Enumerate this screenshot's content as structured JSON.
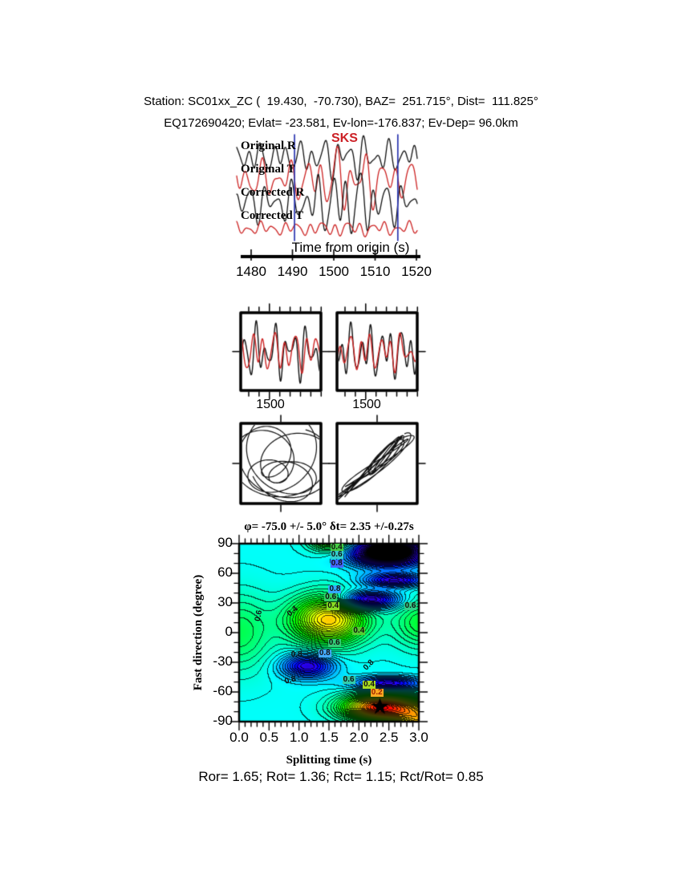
{
  "header": {
    "line1": "Station: SC01xx_ZC (  19.430,  -70.730), BAZ=  251.715°, Dist=  111.825°",
    "line2": "EQ172690420; Evlat= -23.581, Ev-lon=-176.837; Ev-Dep= 96.0km"
  },
  "waveform_panel": {
    "phase_label": "SKS",
    "trace_labels": [
      "Original R",
      "Original T",
      "Corrected R",
      "Corrected T"
    ],
    "axis_title": "Time from origin (s)",
    "tick_labels": [
      "1480",
      "1490",
      "1500",
      "1510",
      "1520"
    ]
  },
  "window_panels": {
    "tick_label": "1500"
  },
  "contour_panel": {
    "title": "φ= -75.0 +/- 5.0° δt= 2.35 +/-0.27s",
    "ylabel": "Fast direction (degree)",
    "xlabel": "Splitting time (s)",
    "ytick_labels": [
      "90",
      "60",
      "30",
      "0",
      "-30",
      "-60",
      "-90"
    ],
    "xtick_labels": [
      "0.0",
      "0.5",
      "1.0",
      "1.5",
      "2.0",
      "2.5",
      "3.0"
    ]
  },
  "footer": "Ror= 1.65; Rot= 1.36; Rct= 1.15; Rct/Rot= 0.85",
  "colors": {
    "trace_black": "#111111",
    "trace_red": "#cc2222",
    "window_marker_blue": "#2b35b0",
    "phase_red": "#cc2026"
  },
  "chart_data": {
    "waveforms": {
      "type": "line",
      "note": "seismic traces; components = [period_s, amplitude_px, phase_rad]; shapes are visual approximations of the screenshot",
      "x_range_s": [
        1476.5,
        1521.5
      ],
      "xticks": [
        1480,
        1490,
        1500,
        1510,
        1520
      ],
      "window_markers_s": [
        1490.5,
        1515.5
      ],
      "traces": [
        {
          "name": "Original R",
          "color": "#111111",
          "components": [
            [
              3.1,
              11,
              0.3
            ],
            [
              5.2,
              7,
              1.8
            ],
            [
              2.1,
              4,
              4.0
            ]
          ],
          "env_gain": 0.5
        },
        {
          "name": "Original T",
          "color": "#cc2222",
          "components": [
            [
              3.6,
              14,
              2.6
            ],
            [
              6.0,
              9,
              0.8
            ],
            [
              2.3,
              5,
              3.3
            ]
          ],
          "env_gain": 0.8
        },
        {
          "name": "Corrected R",
          "color": "#111111",
          "components": [
            [
              3.3,
              15,
              5.0
            ],
            [
              5.5,
              9,
              2.2
            ],
            [
              2.2,
              5,
              1.1
            ]
          ],
          "env_gain": 0.9
        },
        {
          "name": "Corrected T",
          "color": "#cc2222",
          "components": [
            [
              3.0,
              5,
              1.0
            ],
            [
              7.0,
              3,
              2.5
            ],
            [
              2.0,
              2,
              0.5
            ]
          ],
          "env_gain": 0.2
        }
      ]
    },
    "window_zoom": {
      "type": "line",
      "x_range_s": [
        1490,
        1516
      ],
      "tick_s": 1500,
      "boxes": [
        {
          "name": "original R+T",
          "series": [
            {
              "color": "#111111",
              "components": [
                [
                  3.2,
                  20,
                  0.6
                ],
                [
                  5.4,
                  14,
                  2.0
                ],
                [
                  2.2,
                  7,
                  4.2
                ]
              ]
            },
            {
              "color": "#cc2222",
              "components": [
                [
                  3.5,
                  16,
                  2.8
                ],
                [
                  6.1,
                  10,
                  0.9
                ],
                [
                  2.4,
                  6,
                  3.4
                ]
              ]
            }
          ]
        },
        {
          "name": "corrected R+T",
          "series": [
            {
              "color": "#111111",
              "components": [
                [
                  3.2,
                  20,
                  1.1
                ],
                [
                  5.6,
                  13,
                  2.4
                ],
                [
                  2.2,
                  7,
                  0.4
                ]
              ]
            },
            {
              "color": "#cc2222",
              "components": [
                [
                  3.2,
                  14,
                  1.4
                ],
                [
                  5.6,
                  10,
                  2.7
                ],
                [
                  2.4,
                  5,
                  0.7
                ]
              ]
            }
          ]
        }
      ]
    },
    "particle_motion": {
      "type": "parametric",
      "boxes": [
        {
          "name": "original (elliptical)",
          "x_components": [
            [
              3.4,
              30,
              0.0
            ],
            [
              5.7,
              18,
              1.2
            ],
            [
              9.0,
              12,
              2.1
            ]
          ],
          "y_components": [
            [
              3.4,
              26,
              1.55
            ],
            [
              5.7,
              20,
              2.9
            ],
            [
              9.0,
              10,
              0.6
            ]
          ]
        },
        {
          "name": "corrected (linearized)",
          "x_components": [
            [
              3.3,
              28,
              0.5
            ],
            [
              5.5,
              16,
              1.9
            ],
            [
              8.5,
              10,
              3.0
            ]
          ],
          "y_components": [
            [
              3.3,
              25,
              0.65
            ],
            [
              5.5,
              14,
              2.05
            ],
            [
              8.5,
              9,
              3.15
            ],
            [
              2.3,
              6,
              2.2
            ]
          ]
        }
      ]
    },
    "error_surface": {
      "type": "contour",
      "x_label": "Splitting time (s)",
      "x_range": [
        0,
        3
      ],
      "y_label": "Fast direction (degree)",
      "y_range": [
        -90,
        90
      ],
      "best_fit": {
        "phi_deg": -75.0,
        "phi_err_deg": 5.0,
        "dt_s": 2.35,
        "dt_err_s": 0.27
      },
      "star": {
        "x": 2.35,
        "y": -75
      },
      "base_level": 0.78,
      "contour_interval": 0.025,
      "gaussians": [
        {
          "a": -0.66,
          "x": 2.35,
          "sx": 0.6,
          "y": -76,
          "sy": 13
        },
        {
          "a": -0.5,
          "x": 1.5,
          "sx": 0.62,
          "y": 13,
          "sy": 24
        },
        {
          "a": 0.3,
          "x": 1.15,
          "sx": 0.42,
          "y": -34,
          "sy": 12
        },
        {
          "a": 0.6,
          "x": 2.5,
          "sx": 0.62,
          "y": 82,
          "sy": 14
        },
        {
          "a": 0.3,
          "x": 2.6,
          "sx": 0.5,
          "y": 53,
          "sy": 7
        },
        {
          "a": 0.38,
          "x": 2.15,
          "sx": 0.5,
          "y": 33,
          "sy": 9
        },
        {
          "a": -0.15,
          "x": 0.0,
          "sx": 0.55,
          "y": 0,
          "sy": 38
        },
        {
          "a": -0.18,
          "x": 3.05,
          "sx": 0.45,
          "y": 10,
          "sy": 25
        },
        {
          "a": -0.45,
          "x": 3.1,
          "sx": 0.5,
          "y": -90,
          "sy": 18
        },
        {
          "a": -0.35,
          "x": 1.55,
          "sx": 0.35,
          "y": 95,
          "sy": 12
        },
        {
          "a": 0.3,
          "x": 2.5,
          "sx": 0.55,
          "y": -52,
          "sy": 7
        }
      ],
      "labels": [
        {
          "x": 1.63,
          "y": 86,
          "text": "0.4",
          "bg": "#44cc44"
        },
        {
          "x": 1.63,
          "y": 79,
          "text": "0.6",
          "bg": "#33cccc"
        },
        {
          "x": 1.63,
          "y": 70,
          "text": "0.8",
          "bg": "#4466ff"
        },
        {
          "x": 1.6,
          "y": 44,
          "text": "0.8",
          "bg": "#33aaff"
        },
        {
          "x": 1.53,
          "y": 36,
          "text": "0.6",
          "bg": "#33cc66"
        },
        {
          "x": 1.57,
          "y": 27,
          "text": "0.4",
          "bg": "#88dd22"
        },
        {
          "x": 2.86,
          "y": 27,
          "text": "0.6",
          "bg": "#33cc88"
        },
        {
          "x": 0.33,
          "y": 17,
          "text": "0.6",
          "rot": -80
        },
        {
          "x": 0.9,
          "y": 21,
          "text": "0.4",
          "rot": -40
        },
        {
          "x": 2.0,
          "y": 1.5,
          "text": "0.4",
          "bg": "#55cc33"
        },
        {
          "x": 1.59,
          "y": -10.5,
          "text": "0.6",
          "bg": "#33cc77"
        },
        {
          "x": 0.96,
          "y": -23,
          "text": "0.8"
        },
        {
          "x": 1.43,
          "y": -21,
          "text": "0.8",
          "bg": "#44aaff"
        },
        {
          "x": 2.17,
          "y": -33,
          "text": "0.8",
          "rot": -45
        },
        {
          "x": 0.86,
          "y": -49,
          "text": "0.8",
          "rot": -15
        },
        {
          "x": 1.83,
          "y": -47.5,
          "text": "0.6",
          "bg": "#33ccaa"
        },
        {
          "x": 2.17,
          "y": -53,
          "text": "0.4",
          "bg": "#aadd22"
        },
        {
          "x": 2.3,
          "y": -61,
          "text": "0.2",
          "bg": "#ffaa22",
          "fg": "#992200"
        }
      ]
    }
  }
}
